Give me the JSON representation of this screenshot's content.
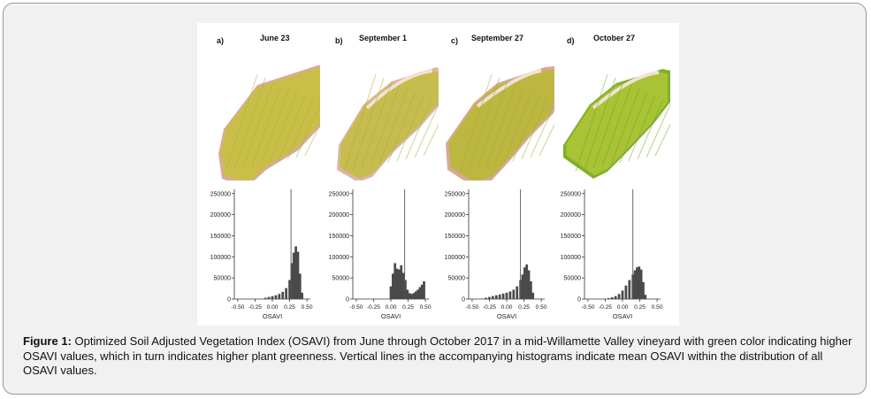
{
  "panels": [
    {
      "label": "a)",
      "date": "June 23",
      "mean": 0.27,
      "style": "june",
      "bins": [
        {
          "x": -0.1,
          "v": 3000
        },
        {
          "x": -0.05,
          "v": 5000
        },
        {
          "x": 0.0,
          "v": 7000
        },
        {
          "x": 0.05,
          "v": 9000
        },
        {
          "x": 0.1,
          "v": 12000
        },
        {
          "x": 0.15,
          "v": 17000
        },
        {
          "x": 0.2,
          "v": 26000
        },
        {
          "x": 0.25,
          "v": 45000
        },
        {
          "x": 0.28,
          "v": 85000
        },
        {
          "x": 0.31,
          "v": 110000
        },
        {
          "x": 0.34,
          "v": 125000
        },
        {
          "x": 0.37,
          "v": 112000
        },
        {
          "x": 0.4,
          "v": 60000
        },
        {
          "x": 0.43,
          "v": 15000
        }
      ]
    },
    {
      "label": "b)",
      "date": "September 1",
      "mean": 0.2,
      "style": "sept1",
      "bins": [
        {
          "x": 0.0,
          "v": 30000
        },
        {
          "x": 0.03,
          "v": 60000
        },
        {
          "x": 0.06,
          "v": 85000
        },
        {
          "x": 0.09,
          "v": 72000
        },
        {
          "x": 0.12,
          "v": 70000
        },
        {
          "x": 0.15,
          "v": 80000
        },
        {
          "x": 0.18,
          "v": 62000
        },
        {
          "x": 0.21,
          "v": 45000
        },
        {
          "x": 0.24,
          "v": 22000
        },
        {
          "x": 0.27,
          "v": 14000
        },
        {
          "x": 0.3,
          "v": 12000
        },
        {
          "x": 0.33,
          "v": 14000
        },
        {
          "x": 0.36,
          "v": 18000
        },
        {
          "x": 0.39,
          "v": 22000
        },
        {
          "x": 0.42,
          "v": 28000
        },
        {
          "x": 0.45,
          "v": 34000
        },
        {
          "x": 0.48,
          "v": 42000
        }
      ]
    },
    {
      "label": "c)",
      "date": "September 27",
      "mean": 0.2,
      "style": "sept27",
      "bins": [
        {
          "x": -0.3,
          "v": 3000
        },
        {
          "x": -0.25,
          "v": 5000
        },
        {
          "x": -0.2,
          "v": 7000
        },
        {
          "x": -0.15,
          "v": 9000
        },
        {
          "x": -0.1,
          "v": 11000
        },
        {
          "x": -0.05,
          "v": 13000
        },
        {
          "x": 0.0,
          "v": 15000
        },
        {
          "x": 0.05,
          "v": 18000
        },
        {
          "x": 0.1,
          "v": 22000
        },
        {
          "x": 0.15,
          "v": 30000
        },
        {
          "x": 0.2,
          "v": 45000
        },
        {
          "x": 0.23,
          "v": 58000
        },
        {
          "x": 0.26,
          "v": 75000
        },
        {
          "x": 0.29,
          "v": 82000
        },
        {
          "x": 0.32,
          "v": 68000
        },
        {
          "x": 0.35,
          "v": 42000
        },
        {
          "x": 0.38,
          "v": 15000
        }
      ]
    },
    {
      "label": "d)",
      "date": "October 27",
      "mean": 0.15,
      "style": "oct27",
      "bins": [
        {
          "x": -0.2,
          "v": 2000
        },
        {
          "x": -0.15,
          "v": 4000
        },
        {
          "x": -0.1,
          "v": 7000
        },
        {
          "x": -0.05,
          "v": 12000
        },
        {
          "x": 0.0,
          "v": 20000
        },
        {
          "x": 0.05,
          "v": 32000
        },
        {
          "x": 0.1,
          "v": 45000
        },
        {
          "x": 0.15,
          "v": 58000
        },
        {
          "x": 0.18,
          "v": 68000
        },
        {
          "x": 0.21,
          "v": 75000
        },
        {
          "x": 0.24,
          "v": 77000
        },
        {
          "x": 0.27,
          "v": 70000
        },
        {
          "x": 0.3,
          "v": 40000
        },
        {
          "x": 0.33,
          "v": 10000
        }
      ]
    }
  ],
  "axes": {
    "xlabel": "OSAVI",
    "xticks": [
      "-0.50",
      "-0.25",
      "0.00",
      "0.25",
      "0.50"
    ],
    "xtick_values": [
      -0.5,
      -0.25,
      0,
      0.25,
      0.5
    ],
    "xlim": [
      -0.55,
      0.55
    ],
    "yticks": [
      "250000",
      "200000",
      "150000",
      "100000",
      "50000",
      "0"
    ],
    "ytick_values": [
      250000,
      200000,
      150000,
      100000,
      50000,
      0
    ],
    "ylim": [
      0,
      260000
    ]
  },
  "chart_data": [
    {
      "type": "bar",
      "title": "June 23",
      "xlabel": "OSAVI",
      "ylim": [
        0,
        260000
      ],
      "x": [
        -0.1,
        -0.05,
        0,
        0.05,
        0.1,
        0.15,
        0.2,
        0.25,
        0.28,
        0.31,
        0.34,
        0.37,
        0.4,
        0.43
      ],
      "values": [
        3000,
        5000,
        7000,
        9000,
        12000,
        17000,
        26000,
        45000,
        85000,
        110000,
        125000,
        112000,
        60000,
        15000
      ],
      "mean": 0.27
    },
    {
      "type": "bar",
      "title": "September 1",
      "xlabel": "OSAVI",
      "ylim": [
        0,
        260000
      ],
      "x": [
        0,
        0.03,
        0.06,
        0.09,
        0.12,
        0.15,
        0.18,
        0.21,
        0.24,
        0.27,
        0.3,
        0.33,
        0.36,
        0.39,
        0.42,
        0.45,
        0.48
      ],
      "values": [
        30000,
        60000,
        85000,
        72000,
        70000,
        80000,
        62000,
        45000,
        22000,
        14000,
        12000,
        14000,
        18000,
        22000,
        28000,
        34000,
        42000
      ],
      "mean": 0.2
    },
    {
      "type": "bar",
      "title": "September 27",
      "xlabel": "OSAVI",
      "ylim": [
        0,
        260000
      ],
      "x": [
        -0.3,
        -0.25,
        -0.2,
        -0.15,
        -0.1,
        -0.05,
        0,
        0.05,
        0.1,
        0.15,
        0.2,
        0.23,
        0.26,
        0.29,
        0.32,
        0.35,
        0.38
      ],
      "values": [
        3000,
        5000,
        7000,
        9000,
        11000,
        13000,
        15000,
        18000,
        22000,
        30000,
        45000,
        58000,
        75000,
        82000,
        68000,
        42000,
        15000
      ],
      "mean": 0.2
    },
    {
      "type": "bar",
      "title": "October 27",
      "xlabel": "OSAVI",
      "ylim": [
        0,
        260000
      ],
      "x": [
        -0.2,
        -0.15,
        -0.1,
        -0.05,
        0,
        0.05,
        0.1,
        0.15,
        0.18,
        0.21,
        0.24,
        0.27,
        0.3,
        0.33
      ],
      "values": [
        2000,
        4000,
        7000,
        12000,
        20000,
        32000,
        45000,
        58000,
        68000,
        75000,
        77000,
        70000,
        40000,
        10000
      ],
      "mean": 0.15
    }
  ],
  "caption": {
    "label": "Figure 1:",
    "text": " Optimized Soil Adjusted Vegetation Index (OSAVI) from June through October 2017 in a mid-Willamette Valley vineyard with green color indicating higher OSAVI values, which in turn indicates higher plant greenness. Vertical lines in the accompanying histograms indicate mean OSAVI within the distribution of all OSAVI values."
  },
  "colors": {
    "bar": "#4a4a4a",
    "mean_line": "#555555",
    "axis": "#333333",
    "border": "#9a9a9a",
    "background": "#f1f1f1"
  }
}
